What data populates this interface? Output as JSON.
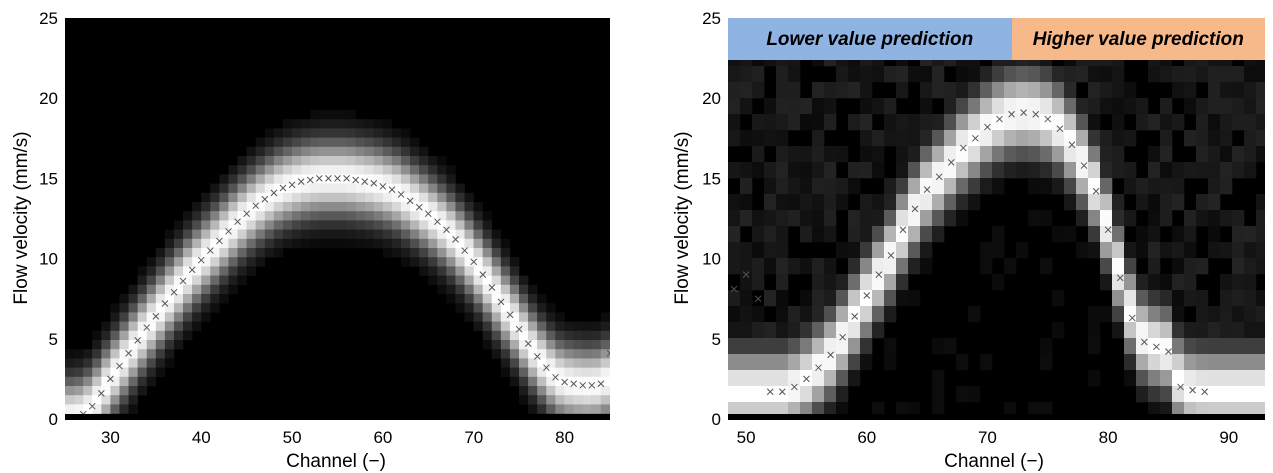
{
  "chart_data": [
    {
      "type": "heatmap",
      "xlabel": "Channel (−)",
      "ylabel": "Flow velocity (mm/s)",
      "xlim": [
        25,
        85
      ],
      "ylim": [
        0,
        25
      ],
      "xticks": [
        30,
        40,
        50,
        60,
        70,
        80
      ],
      "yticks": [
        0,
        5,
        10,
        15,
        20,
        25
      ],
      "colormap": "grayscale (black low, white high)",
      "band_width_mm_s": 1.6,
      "tail_curve": [
        [
          79.5,
          1.7
        ],
        [
          80,
          1.8
        ],
        [
          81,
          1.9
        ],
        [
          82,
          2.1
        ],
        [
          83,
          2.2
        ],
        [
          84,
          2.5
        ],
        [
          85,
          3.0
        ]
      ],
      "prediction_markers": {
        "symbol": "x",
        "color": "#555555",
        "x": [
          26,
          27,
          28,
          29,
          30,
          31,
          32,
          33,
          34,
          35,
          36,
          37,
          38,
          39,
          40,
          41,
          42,
          43,
          44,
          45,
          46,
          47,
          48,
          49,
          50,
          51,
          52,
          53,
          54,
          55,
          56,
          57,
          58,
          59,
          60,
          61,
          62,
          63,
          64,
          65,
          66,
          67,
          68,
          69,
          70,
          71,
          72,
          73,
          74,
          75,
          76,
          77,
          78,
          79,
          80,
          81,
          82,
          83,
          84,
          85
        ],
        "y": [
          0.1,
          0.3,
          0.8,
          1.6,
          2.5,
          3.3,
          4.1,
          4.9,
          5.7,
          6.4,
          7.2,
          7.9,
          8.6,
          9.3,
          9.9,
          10.5,
          11.1,
          11.7,
          12.3,
          12.8,
          13.3,
          13.7,
          14.1,
          14.4,
          14.6,
          14.8,
          14.9,
          15.0,
          15.0,
          15.0,
          15.0,
          14.9,
          14.8,
          14.7,
          14.5,
          14.3,
          14.0,
          13.6,
          13.2,
          12.8,
          12.3,
          11.8,
          11.2,
          10.5,
          9.8,
          9.0,
          8.2,
          7.3,
          6.5,
          5.6,
          4.7,
          3.9,
          3.2,
          2.6,
          2.3,
          2.2,
          2.1,
          2.1,
          2.2,
          4.1
        ]
      }
    },
    {
      "type": "heatmap",
      "xlabel": "Channel (−)",
      "ylabel": "Flow velocity (mm/s)",
      "xlim": [
        48.5,
        93
      ],
      "ylim": [
        0,
        25
      ],
      "xticks": [
        50,
        60,
        70,
        80,
        90
      ],
      "yticks": [
        0,
        5,
        10,
        15,
        20,
        25
      ],
      "colormap": "grayscale (black low, white high)",
      "band_width_mm_s": 1.7,
      "prediction_regions": [
        {
          "label": "Lower value prediction",
          "x_range": [
            48.5,
            72
          ],
          "color": "#8fb4e3"
        },
        {
          "label": "Higher value prediction",
          "x_range": [
            72,
            93
          ],
          "color": "#f8b98a"
        }
      ],
      "prediction_markers": {
        "symbol": "x",
        "color": "#555555",
        "x": [
          49,
          50,
          51,
          52,
          53,
          54,
          55,
          56,
          57,
          58,
          59,
          60,
          61,
          62,
          63,
          64,
          65,
          66,
          67,
          68,
          69,
          70,
          71,
          72,
          73,
          74,
          75,
          76,
          77,
          78,
          79,
          80,
          81,
          82,
          83,
          84,
          85,
          86,
          87,
          88
        ],
        "y": [
          8.1,
          9.0,
          7.5,
          1.7,
          1.7,
          2.0,
          2.5,
          3.2,
          4.0,
          5.1,
          6.4,
          7.7,
          9.0,
          10.2,
          11.8,
          13.1,
          14.3,
          15.1,
          16.0,
          16.9,
          17.5,
          18.2,
          18.7,
          19.0,
          19.1,
          19.0,
          18.7,
          18.1,
          17.1,
          15.8,
          14.2,
          11.8,
          8.8,
          6.3,
          4.8,
          4.5,
          4.2,
          2.0,
          1.8,
          1.7
        ]
      }
    }
  ]
}
